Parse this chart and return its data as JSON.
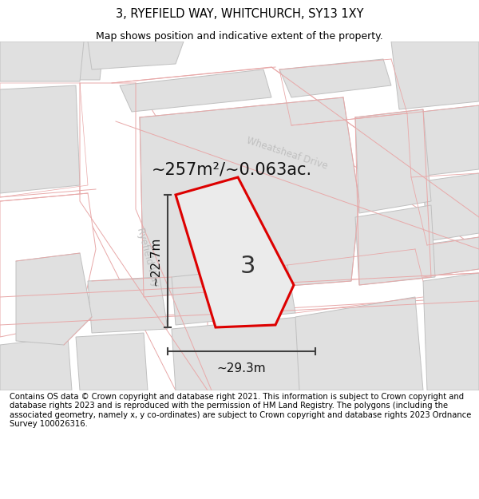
{
  "title": "3, RYEFIELD WAY, WHITCHURCH, SY13 1XY",
  "subtitle": "Map shows position and indicative extent of the property.",
  "footer": "Contains OS data © Crown copyright and database right 2021. This information is subject to Crown copyright and database rights 2023 and is reproduced with the permission of HM Land Registry. The polygons (including the associated geometry, namely x, y co-ordinates) are subject to Crown copyright and database rights 2023 Ordnance Survey 100026316.",
  "area_label": "~257m²/~0.063ac.",
  "width_label": "~29.3m",
  "height_label": "~22.7m",
  "plot_number": "3",
  "map_bg": "#f5f5f5",
  "building_fill": "#e0e0e0",
  "building_edge": "#c0c0c0",
  "road_fill": "#ffffff",
  "road_edge": "#e8a8a8",
  "plot_outline_color": "#dd0000",
  "plot_fill": "#ebebeb",
  "street_label_color": "#c0c0c0",
  "dim_line_color": "#404040",
  "title_fontsize": 10.5,
  "subtitle_fontsize": 9,
  "footer_fontsize": 7.2,
  "area_fontsize": 15,
  "dim_fontsize": 11,
  "plot_num_fontsize": 22
}
